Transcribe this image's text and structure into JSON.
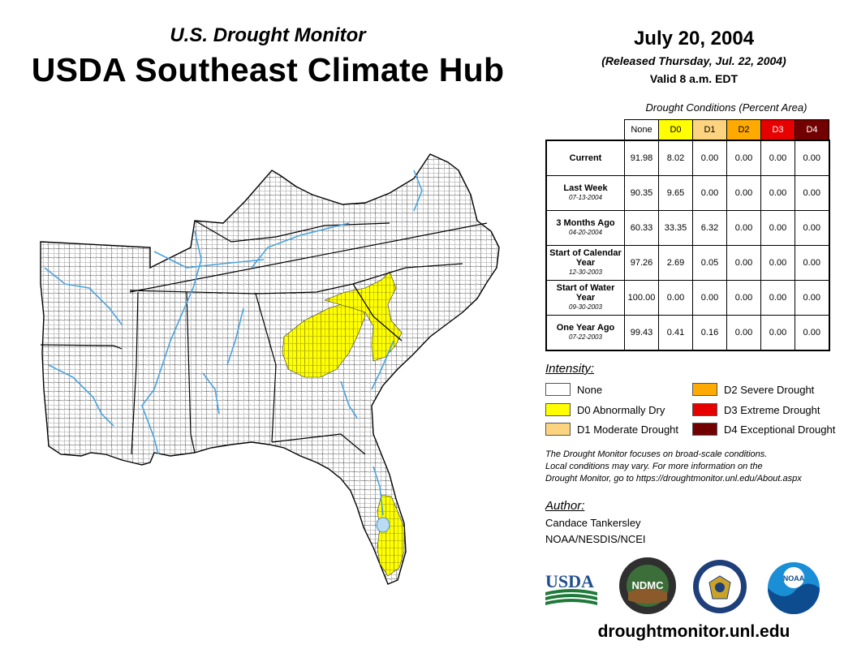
{
  "header": {
    "subtitle": "U.S. Drought Monitor",
    "title": "USDA Southeast Climate Hub",
    "date": "July 20, 2004",
    "released": "(Released Thursday, Jul. 22, 2004)",
    "valid": "Valid 8 a.m. EDT"
  },
  "table": {
    "caption": "Drought Conditions (Percent Area)",
    "columns": [
      "None",
      "D0",
      "D1",
      "D2",
      "D3",
      "D4"
    ],
    "column_colors": [
      "#ffffff",
      "#ffff00",
      "#fcd37f",
      "#ffaa00",
      "#e60000",
      "#730000"
    ],
    "column_text_colors": [
      "#000000",
      "#000000",
      "#000000",
      "#000000",
      "#ffffff",
      "#ffffff"
    ],
    "rows": [
      {
        "label": "Current",
        "sub": "",
        "values": [
          "91.98",
          "8.02",
          "0.00",
          "0.00",
          "0.00",
          "0.00"
        ]
      },
      {
        "label": "Last Week",
        "sub": "07-13-2004",
        "values": [
          "90.35",
          "9.65",
          "0.00",
          "0.00",
          "0.00",
          "0.00"
        ]
      },
      {
        "label": "3 Months Ago",
        "sub": "04-20-2004",
        "values": [
          "60.33",
          "33.35",
          "6.32",
          "0.00",
          "0.00",
          "0.00"
        ]
      },
      {
        "label": "Start of Calendar Year",
        "sub": "12-30-2003",
        "values": [
          "97.26",
          "2.69",
          "0.05",
          "0.00",
          "0.00",
          "0.00"
        ]
      },
      {
        "label": "Start of Water Year",
        "sub": "09-30-2003",
        "values": [
          "100.00",
          "0.00",
          "0.00",
          "0.00",
          "0.00",
          "0.00"
        ]
      },
      {
        "label": "One Year Ago",
        "sub": "07-22-2003",
        "values": [
          "99.43",
          "0.41",
          "0.16",
          "0.00",
          "0.00",
          "0.00"
        ]
      }
    ]
  },
  "legend": {
    "title": "Intensity:",
    "items": [
      {
        "label": "None",
        "color": "#ffffff"
      },
      {
        "label": "D0 Abnormally Dry",
        "color": "#ffff00"
      },
      {
        "label": "D1 Moderate Drought",
        "color": "#fcd37f"
      },
      {
        "label": "D2 Severe Drought",
        "color": "#ffaa00"
      },
      {
        "label": "D3 Extreme Drought",
        "color": "#e60000"
      },
      {
        "label": "D4 Exceptional Drought",
        "color": "#730000"
      }
    ]
  },
  "note": {
    "line1": "The Drought Monitor focuses on broad-scale conditions.",
    "line2": "Local conditions may vary. For more information on the",
    "line3": "Drought Monitor, go to https://droughtmonitor.unl.edu/About.aspx"
  },
  "author": {
    "title": "Author:",
    "name": "Candace Tankersley",
    "org": "NOAA/NESDIS/NCEI"
  },
  "logos": {
    "usda": "USDA",
    "ndmc": "NDMC",
    "noaa": "NOAA"
  },
  "website": "droughtmonitor.unl.edu",
  "map_colors": {
    "land": "#ffffff",
    "d0": "#ffff00",
    "water": "#4aa3df",
    "lake": "#b9dcf2"
  }
}
